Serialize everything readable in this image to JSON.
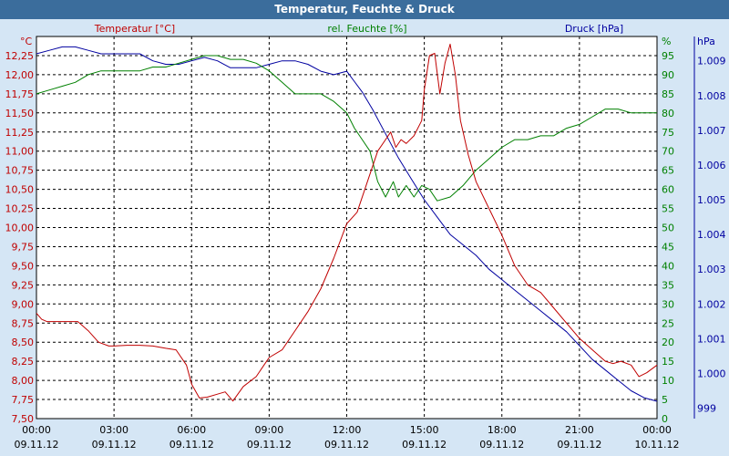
{
  "title": "Temperatur, Feuchte & Druck",
  "colors": {
    "temperature": "#c00000",
    "humidity": "#008000",
    "pressure": "#0000a0",
    "background": "#d5e6f5",
    "titlebar": "#3b6d9c"
  },
  "chart_data": {
    "type": "line",
    "title": "Temperatur, Feuchte & Druck",
    "x_unit": "hours since 00:00 09.11.12",
    "xlim": [
      0,
      24
    ],
    "x_ticks": [
      {
        "time": "00:00",
        "date": "09.11.12"
      },
      {
        "time": "03:00",
        "date": "09.11.12"
      },
      {
        "time": "06:00",
        "date": "09.11.12"
      },
      {
        "time": "09:00",
        "date": "09.11.12"
      },
      {
        "time": "12:00",
        "date": "09.11.12"
      },
      {
        "time": "15:00",
        "date": "09.11.12"
      },
      {
        "time": "18:00",
        "date": "09.11.12"
      },
      {
        "time": "21:00",
        "date": "09.11.12"
      },
      {
        "time": "00:00",
        "date": "10.11.12"
      }
    ],
    "axes": {
      "left": {
        "label": "Temperatur [°C]",
        "unit": "°C",
        "ylim": [
          7.5,
          12.5
        ],
        "ticks": [
          "7,50",
          "7,75",
          "8,00",
          "8,25",
          "8,50",
          "8,75",
          "9,00",
          "9,25",
          "9,50",
          "9,75",
          "10,00",
          "10,25",
          "10,50",
          "10,75",
          "11,00",
          "11,25",
          "11,50",
          "11,75",
          "12,00",
          "12,25"
        ]
      },
      "right1": {
        "label": "rel. Feuchte [%]",
        "unit": "%",
        "ylim": [
          0,
          100
        ],
        "ticks": [
          "0",
          "5",
          "10",
          "15",
          "20",
          "25",
          "30",
          "35",
          "40",
          "45",
          "50",
          "55",
          "60",
          "65",
          "70",
          "75",
          "80",
          "85",
          "90",
          "95"
        ]
      },
      "right2": {
        "label": "Druck [hPa]",
        "unit": "hPa",
        "ylim": [
          998.7,
          1009.7
        ],
        "ticks": [
          "999",
          "1.000",
          "1.001",
          "1.002",
          "1.003",
          "1.004",
          "1.005",
          "1.006",
          "1.007",
          "1.008",
          "1.009"
        ]
      }
    },
    "series": [
      {
        "name": "Temperatur [°C]",
        "axis": "left",
        "color": "#c00000",
        "x": [
          0,
          0.2,
          0.4,
          0.8,
          1.2,
          1.6,
          2.0,
          2.4,
          2.8,
          3.0,
          3.5,
          4.0,
          4.5,
          5.0,
          5.4,
          5.8,
          6.0,
          6.3,
          6.6,
          7.0,
          7.3,
          7.6,
          8.0,
          8.5,
          8.8,
          9.0,
          9.5,
          10.0,
          10.5,
          11.0,
          11.5,
          12.0,
          12.4,
          12.8,
          13.2,
          13.5,
          13.7,
          13.9,
          14.1,
          14.3,
          14.6,
          14.9,
          15.0,
          15.2,
          15.4,
          15.6,
          15.8,
          16.0,
          16.2,
          16.4,
          16.7,
          17.0,
          17.5,
          18.0,
          18.5,
          19.0,
          19.5,
          20.0,
          20.5,
          21.0,
          21.5,
          22.0,
          22.3,
          22.6,
          23.0,
          23.3,
          23.6,
          24.0
        ],
        "values": [
          8.88,
          8.8,
          8.77,
          8.77,
          8.77,
          8.77,
          8.65,
          8.5,
          8.45,
          8.45,
          8.46,
          8.46,
          8.45,
          8.42,
          8.4,
          8.2,
          7.95,
          7.77,
          7.78,
          7.82,
          7.85,
          7.73,
          7.92,
          8.05,
          8.2,
          8.3,
          8.4,
          8.65,
          8.9,
          9.2,
          9.6,
          10.05,
          10.2,
          10.6,
          11.0,
          11.15,
          11.25,
          11.05,
          11.15,
          11.1,
          11.2,
          11.4,
          11.8,
          12.25,
          12.28,
          11.75,
          12.15,
          12.4,
          12.0,
          11.4,
          10.95,
          10.6,
          10.25,
          9.9,
          9.5,
          9.25,
          9.15,
          8.95,
          8.75,
          8.55,
          8.4,
          8.25,
          8.22,
          8.25,
          8.2,
          8.05,
          8.1,
          8.2
        ]
      },
      {
        "name": "rel. Feuchte [%]",
        "axis": "right1",
        "color": "#008000",
        "x": [
          0,
          0.5,
          1.0,
          1.5,
          2.0,
          2.5,
          3.0,
          3.5,
          4.0,
          4.5,
          5.0,
          5.5,
          6.0,
          6.5,
          7.0,
          7.5,
          8.0,
          8.5,
          9.0,
          9.5,
          10.0,
          10.5,
          11.0,
          11.5,
          12.0,
          12.3,
          12.6,
          12.9,
          13.2,
          13.5,
          13.8,
          14.0,
          14.3,
          14.6,
          14.9,
          15.2,
          15.5,
          16.0,
          16.5,
          17.0,
          17.5,
          18.0,
          18.5,
          19.0,
          19.5,
          20.0,
          20.5,
          21.0,
          21.5,
          22.0,
          22.5,
          23.0,
          23.5,
          24.0
        ],
        "values": [
          85,
          86,
          87,
          88,
          90,
          91,
          91,
          91,
          91,
          92,
          92,
          93,
          94,
          95,
          95,
          94,
          94,
          93,
          91,
          88,
          85,
          85,
          85,
          83,
          80,
          76,
          73,
          70,
          62,
          58,
          62,
          58,
          61,
          58,
          61,
          60,
          57,
          58,
          61,
          65,
          68,
          71,
          73,
          73,
          74,
          74,
          76,
          77,
          79,
          81,
          81,
          80,
          80,
          80
        ],
        "estimated": true
      },
      {
        "name": "Druck [hPa]",
        "axis": "right2",
        "color": "#0000a0",
        "x": [
          0,
          0.5,
          1.0,
          1.5,
          2.0,
          2.5,
          3.0,
          3.5,
          4.0,
          4.5,
          5.0,
          5.5,
          6.0,
          6.5,
          7.0,
          7.5,
          8.0,
          8.5,
          9.0,
          9.5,
          10.0,
          10.5,
          11.0,
          11.5,
          12.0,
          12.3,
          12.6,
          13.0,
          13.5,
          14.0,
          14.5,
          15.0,
          15.5,
          16.0,
          16.5,
          17.0,
          17.5,
          18.0,
          18.5,
          19.0,
          19.5,
          20.0,
          20.5,
          21.0,
          21.5,
          22.0,
          22.5,
          23.0,
          23.5,
          24.0
        ],
        "values": [
          1009.2,
          1009.3,
          1009.4,
          1009.4,
          1009.3,
          1009.2,
          1009.2,
          1009.2,
          1009.2,
          1009.0,
          1008.9,
          1008.9,
          1009.0,
          1009.1,
          1009.0,
          1008.8,
          1008.8,
          1008.8,
          1008.9,
          1009.0,
          1009.0,
          1008.9,
          1008.7,
          1008.6,
          1008.7,
          1008.4,
          1008.1,
          1007.6,
          1006.9,
          1006.2,
          1005.6,
          1005.0,
          1004.5,
          1004.0,
          1003.7,
          1003.4,
          1003.0,
          1002.7,
          1002.4,
          1002.1,
          1001.8,
          1001.5,
          1001.2,
          1000.8,
          1000.4,
          1000.1,
          999.8,
          999.5,
          999.3,
          999.2
        ],
        "estimated": true
      }
    ]
  }
}
